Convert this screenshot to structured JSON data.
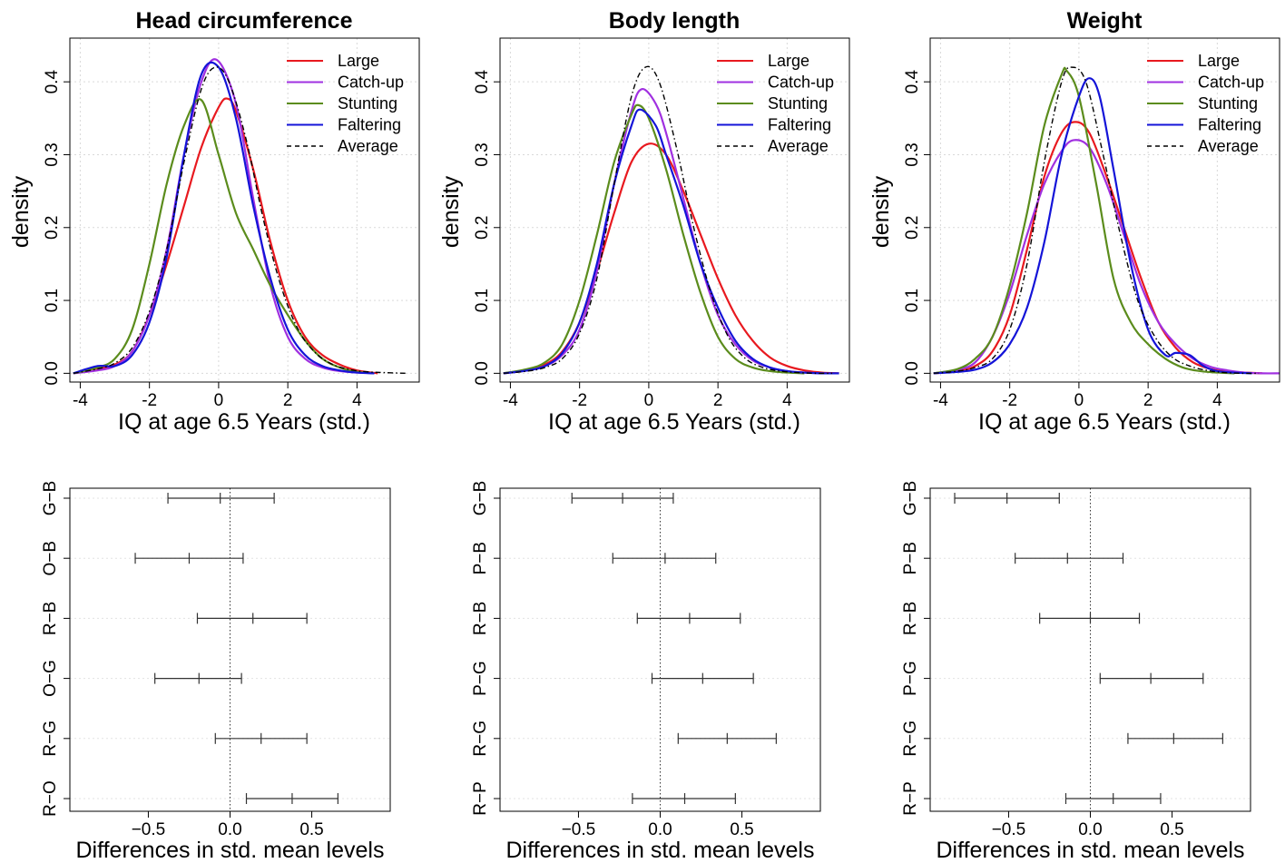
{
  "colors": {
    "large": "#e8191f",
    "catchup": "#a030e0",
    "stunting": "#5b8c1c",
    "faltering": "#1414d8",
    "average": "#000000"
  },
  "chart_data": [
    {
      "type": "line",
      "title": "Head circumference",
      "xlabel": "IQ at age 6.5 Years (std.)",
      "ylabel": "density",
      "xlim": [
        -4.3,
        5.8
      ],
      "ylim": [
        -0.012,
        0.46
      ],
      "xticks": [
        -4,
        -2,
        0,
        2,
        4
      ],
      "yticks": [
        0.0,
        0.1,
        0.2,
        0.3,
        0.4
      ],
      "ytick_labels": [
        "0.0",
        "0.1",
        "0.2",
        "0.3",
        "0.4"
      ],
      "grid": true,
      "legend_position": "top-right",
      "series": [
        {
          "name": "Large",
          "color_key": "large",
          "dashed": false,
          "x": [
            -4.2,
            -3.5,
            -3,
            -2.5,
            -2,
            -1.5,
            -1,
            -0.5,
            0,
            0.25,
            0.5,
            1,
            1.5,
            2,
            2.5,
            3,
            3.5,
            4,
            4.6
          ],
          "y": [
            0.0,
            0.006,
            0.012,
            0.03,
            0.08,
            0.15,
            0.23,
            0.31,
            0.365,
            0.377,
            0.36,
            0.28,
            0.18,
            0.1,
            0.05,
            0.025,
            0.012,
            0.004,
            0.0
          ]
        },
        {
          "name": "Catch-up",
          "color_key": "catchup",
          "dashed": false,
          "x": [
            -4.2,
            -3.5,
            -3,
            -2.5,
            -2,
            -1.5,
            -1,
            -0.5,
            -0.05,
            0.5,
            1,
            1.5,
            2,
            2.5,
            3,
            3.5,
            4,
            4.5
          ],
          "y": [
            0.0,
            0.004,
            0.01,
            0.03,
            0.08,
            0.17,
            0.3,
            0.4,
            0.43,
            0.37,
            0.24,
            0.12,
            0.05,
            0.02,
            0.008,
            0.003,
            0.001,
            0.0
          ]
        },
        {
          "name": "Stunting",
          "color_key": "stunting",
          "dashed": false,
          "x": [
            -4.2,
            -3.5,
            -3,
            -2.5,
            -2,
            -1.5,
            -1,
            -0.5,
            0,
            0.5,
            1,
            1.5,
            2,
            2.5,
            3,
            3.5,
            4,
            4.5
          ],
          "y": [
            0.0,
            0.008,
            0.02,
            0.06,
            0.15,
            0.26,
            0.34,
            0.375,
            0.3,
            0.22,
            0.17,
            0.12,
            0.08,
            0.045,
            0.02,
            0.008,
            0.002,
            0.0
          ]
        },
        {
          "name": "Faltering",
          "color_key": "faltering",
          "dashed": false,
          "x": [
            -4.2,
            -3.5,
            -3,
            -2.5,
            -2,
            -1.5,
            -1,
            -0.5,
            0,
            0.5,
            1,
            1.5,
            2,
            2.5,
            3,
            3.5,
            4,
            4.5
          ],
          "y": [
            0.0,
            0.01,
            0.01,
            0.025,
            0.07,
            0.16,
            0.3,
            0.41,
            0.42,
            0.35,
            0.23,
            0.13,
            0.06,
            0.025,
            0.01,
            0.004,
            0.001,
            0.0
          ]
        },
        {
          "name": "Average",
          "color_key": "average",
          "dashed": true,
          "x": [
            -4.2,
            -3.5,
            -3,
            -2.5,
            -2,
            -1.5,
            -1,
            -0.5,
            -0.1,
            0.3,
            0.8,
            1.3,
            1.8,
            2.3,
            2.8,
            3.3,
            3.8,
            4.3,
            4.8,
            5.4
          ],
          "y": [
            0.0,
            0.006,
            0.014,
            0.035,
            0.085,
            0.17,
            0.29,
            0.39,
            0.42,
            0.4,
            0.32,
            0.21,
            0.12,
            0.06,
            0.028,
            0.012,
            0.005,
            0.002,
            0.001,
            0.0
          ]
        }
      ]
    },
    {
      "type": "line",
      "title": "Body length",
      "xlabel": "IQ at age 6.5 Years (std.)",
      "ylabel": "density",
      "xlim": [
        -4.3,
        5.8
      ],
      "ylim": [
        -0.012,
        0.46
      ],
      "xticks": [
        -4,
        -2,
        0,
        2,
        4
      ],
      "yticks": [
        0.0,
        0.1,
        0.2,
        0.3,
        0.4
      ],
      "ytick_labels": [
        "0.0",
        "0.1",
        "0.2",
        "0.3",
        "0.4"
      ],
      "grid": true,
      "legend_position": "top-right",
      "series": [
        {
          "name": "Large",
          "color_key": "large",
          "dashed": false,
          "x": [
            -4.2,
            -3.5,
            -3,
            -2.5,
            -2,
            -1.5,
            -1,
            -0.5,
            0,
            0.5,
            1,
            1.5,
            2,
            2.5,
            3,
            3.5,
            4,
            4.5,
            5,
            5.5
          ],
          "y": [
            0.0,
            0.005,
            0.012,
            0.03,
            0.07,
            0.14,
            0.22,
            0.29,
            0.315,
            0.3,
            0.25,
            0.19,
            0.13,
            0.08,
            0.045,
            0.022,
            0.01,
            0.004,
            0.001,
            0.0
          ]
        },
        {
          "name": "Catch-up",
          "color_key": "catchup",
          "dashed": false,
          "x": [
            -4.2,
            -3.5,
            -3,
            -2.5,
            -2,
            -1.5,
            -1,
            -0.5,
            -0.2,
            0.2,
            0.5,
            1,
            1.5,
            2,
            2.5,
            3,
            3.5,
            4,
            4.5,
            5
          ],
          "y": [
            0.0,
            0.004,
            0.01,
            0.025,
            0.06,
            0.14,
            0.26,
            0.36,
            0.39,
            0.37,
            0.33,
            0.24,
            0.15,
            0.08,
            0.04,
            0.018,
            0.008,
            0.003,
            0.001,
            0.0
          ]
        },
        {
          "name": "Stunting",
          "color_key": "stunting",
          "dashed": false,
          "x": [
            -4.2,
            -3.5,
            -3,
            -2.5,
            -2,
            -1.5,
            -1,
            -0.5,
            -0.3,
            0,
            0.5,
            1,
            1.5,
            2,
            2.5,
            3,
            3.5,
            4,
            4.5
          ],
          "y": [
            0.0,
            0.006,
            0.015,
            0.04,
            0.1,
            0.19,
            0.29,
            0.355,
            0.368,
            0.35,
            0.28,
            0.19,
            0.11,
            0.05,
            0.02,
            0.008,
            0.003,
            0.001,
            0.0
          ]
        },
        {
          "name": "Faltering",
          "color_key": "faltering",
          "dashed": false,
          "x": [
            -4.2,
            -3.5,
            -3,
            -2.5,
            -2,
            -1.5,
            -1,
            -0.5,
            -0.25,
            0.2,
            0.5,
            1,
            1.5,
            2,
            2.5,
            3,
            3.5,
            4,
            4.5,
            5,
            5.5
          ],
          "y": [
            0.0,
            0.004,
            0.01,
            0.028,
            0.07,
            0.15,
            0.26,
            0.34,
            0.362,
            0.34,
            0.3,
            0.23,
            0.15,
            0.09,
            0.045,
            0.02,
            0.008,
            0.003,
            0.001,
            0.0,
            0.0
          ]
        },
        {
          "name": "Average",
          "color_key": "average",
          "dashed": true,
          "x": [
            -4.2,
            -3.5,
            -3,
            -2.5,
            -2,
            -1.5,
            -1,
            -0.5,
            -0.1,
            0.3,
            0.8,
            1.3,
            1.8,
            2.3,
            2.8,
            3.3,
            3.8,
            4.3,
            4.8,
            5.3
          ],
          "y": [
            0.0,
            0.003,
            0.008,
            0.02,
            0.055,
            0.13,
            0.26,
            0.38,
            0.42,
            0.4,
            0.31,
            0.2,
            0.11,
            0.05,
            0.02,
            0.008,
            0.003,
            0.001,
            0.0,
            0.0
          ]
        }
      ]
    },
    {
      "type": "line",
      "title": "Weight",
      "xlabel": "IQ at age 6.5 Years (std.)",
      "ylabel": "density",
      "xlim": [
        -4.3,
        5.8
      ],
      "ylim": [
        -0.012,
        0.46
      ],
      "xticks": [
        -4,
        -2,
        0,
        2,
        4
      ],
      "yticks": [
        0.0,
        0.1,
        0.2,
        0.3,
        0.4
      ],
      "ytick_labels": [
        "0.0",
        "0.1",
        "0.2",
        "0.3",
        "0.4"
      ],
      "grid": true,
      "legend_position": "top-right",
      "series": [
        {
          "name": "Large",
          "color_key": "large",
          "dashed": false,
          "x": [
            -4.2,
            -3.5,
            -3,
            -2.5,
            -2,
            -1.5,
            -1,
            -0.5,
            -0.1,
            0.3,
            0.8,
            1.3,
            1.8,
            2.3,
            2.8,
            3.3,
            3.8,
            4.3,
            4.8,
            5.3
          ],
          "y": [
            0.0,
            0.003,
            0.01,
            0.03,
            0.08,
            0.17,
            0.27,
            0.33,
            0.345,
            0.33,
            0.27,
            0.2,
            0.13,
            0.07,
            0.035,
            0.015,
            0.006,
            0.002,
            0.001,
            0.0
          ]
        },
        {
          "name": "Catch-up",
          "color_key": "catchup",
          "dashed": false,
          "x": [
            -4.2,
            -3.5,
            -3,
            -2.5,
            -2,
            -1.5,
            -1,
            -0.5,
            -0.15,
            0.3,
            0.8,
            1.3,
            1.8,
            2.3,
            2.8,
            3.3,
            3.8,
            4.3,
            4.8,
            5.3,
            5.8
          ],
          "y": [
            0.0,
            0.005,
            0.015,
            0.05,
            0.11,
            0.19,
            0.26,
            0.305,
            0.32,
            0.31,
            0.26,
            0.19,
            0.12,
            0.07,
            0.04,
            0.02,
            0.009,
            0.004,
            0.001,
            0.0,
            0.0
          ]
        },
        {
          "name": "Stunting",
          "color_key": "stunting",
          "dashed": false,
          "x": [
            -4.2,
            -3.5,
            -3,
            -2.5,
            -2,
            -1.5,
            -1,
            -0.5,
            -0.35,
            0,
            0.5,
            1,
            1.5,
            2,
            2.5,
            3,
            3.5,
            4,
            4.5
          ],
          "y": [
            0.0,
            0.006,
            0.02,
            0.05,
            0.12,
            0.22,
            0.34,
            0.41,
            0.415,
            0.38,
            0.26,
            0.13,
            0.07,
            0.04,
            0.02,
            0.008,
            0.003,
            0.001,
            0.0
          ]
        },
        {
          "name": "Faltering",
          "color_key": "faltering",
          "dashed": false,
          "x": [
            -4.2,
            -3.5,
            -3,
            -2.5,
            -2,
            -1.5,
            -1,
            -0.5,
            0,
            0.3,
            0.6,
            1,
            1.5,
            2,
            2.5,
            2.8,
            3.2,
            3.6,
            4,
            4.5,
            5
          ],
          "y": [
            0.0,
            0.002,
            0.005,
            0.015,
            0.04,
            0.09,
            0.18,
            0.3,
            0.38,
            0.405,
            0.38,
            0.28,
            0.15,
            0.06,
            0.025,
            0.028,
            0.025,
            0.01,
            0.003,
            0.001,
            0.0
          ]
        },
        {
          "name": "Average",
          "color_key": "average",
          "dashed": true,
          "x": [
            -4.2,
            -3.5,
            -3,
            -2.5,
            -2,
            -1.5,
            -1,
            -0.5,
            -0.2,
            0.2,
            0.7,
            1.2,
            1.7,
            2.2,
            2.7,
            3.2,
            3.7,
            4.2,
            4.7,
            5.2
          ],
          "y": [
            0.0,
            0.003,
            0.008,
            0.02,
            0.06,
            0.15,
            0.29,
            0.4,
            0.42,
            0.4,
            0.3,
            0.19,
            0.1,
            0.05,
            0.022,
            0.01,
            0.004,
            0.001,
            0.0,
            0.0
          ]
        }
      ]
    },
    {
      "type": "errorbar",
      "xlabel": "Differences in std. mean levels",
      "xlim": [
        -0.98,
        0.98
      ],
      "xticks": [
        -0.5,
        0.0,
        0.5
      ],
      "xtick_labels": [
        "−0.5",
        "0.0",
        "0.5"
      ],
      "reference_line": 0,
      "categories": [
        "G−B",
        "O−B",
        "R−B",
        "O−G",
        "R−G",
        "R−O"
      ],
      "estimates": [
        -0.06,
        -0.25,
        0.14,
        -0.19,
        0.19,
        0.38
      ],
      "lower": [
        -0.38,
        -0.58,
        -0.2,
        -0.46,
        -0.09,
        0.1
      ],
      "upper": [
        0.27,
        0.08,
        0.47,
        0.07,
        0.47,
        0.66
      ]
    },
    {
      "type": "errorbar",
      "xlabel": "Differences in std. mean levels",
      "xlim": [
        -0.98,
        0.98
      ],
      "xticks": [
        -0.5,
        0.0,
        0.5
      ],
      "xtick_labels": [
        "−0.5",
        "0.0",
        "0.5"
      ],
      "reference_line": 0,
      "categories": [
        "G−B",
        "P−B",
        "R−B",
        "P−G",
        "R−G",
        "R−P"
      ],
      "estimates": [
        -0.23,
        0.03,
        0.18,
        0.26,
        0.41,
        0.15
      ],
      "lower": [
        -0.54,
        -0.29,
        -0.14,
        -0.05,
        0.11,
        -0.17
      ],
      "upper": [
        0.08,
        0.34,
        0.49,
        0.57,
        0.71,
        0.46
      ]
    },
    {
      "type": "errorbar",
      "xlabel": "Differences in std. mean levels",
      "xlim": [
        -0.98,
        0.98
      ],
      "xticks": [
        -0.5,
        0.0,
        0.5
      ],
      "xtick_labels": [
        "−0.5",
        "0.0",
        "0.5"
      ],
      "reference_line": 0,
      "categories": [
        "G−B",
        "P−B",
        "R−B",
        "P−G",
        "R−G",
        "R−P"
      ],
      "estimates": [
        -0.51,
        -0.14,
        0.0,
        0.37,
        0.51,
        0.14
      ],
      "lower": [
        -0.83,
        -0.46,
        -0.31,
        0.06,
        0.23,
        -0.15
      ],
      "upper": [
        -0.19,
        0.2,
        0.3,
        0.69,
        0.81,
        0.43
      ]
    }
  ]
}
